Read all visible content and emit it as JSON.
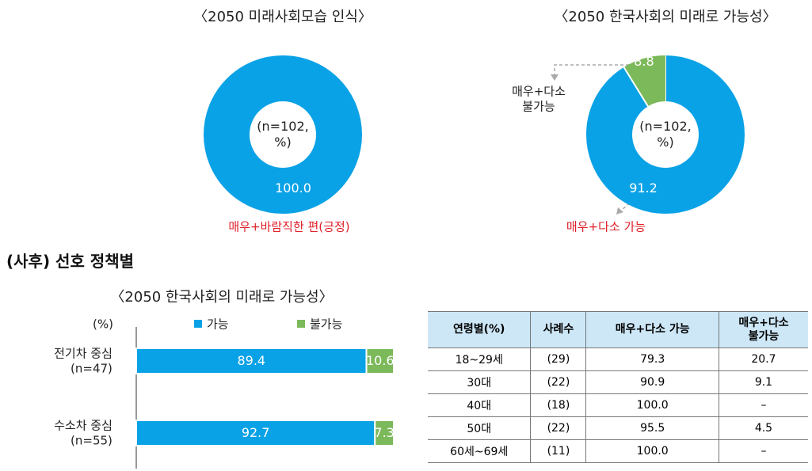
{
  "section_title": "(사후) 선호 정책별",
  "chart_data": [
    {
      "type": "donut",
      "title": "〈2050 미래사회모습 인식〉",
      "center_label": "(n=102,\n%)",
      "categories": [
        "매우+바람직한 편(긍정)"
      ],
      "values": [
        100.0
      ],
      "value_labels": [
        "100.0"
      ],
      "colors": [
        "#0aa2e6"
      ]
    },
    {
      "type": "donut",
      "title": "〈2050 한국사회의 미래로 가능성〉",
      "center_label": "(n=102,\n%)",
      "categories": [
        "매우+다소 가능",
        "매우+다소\n불가능"
      ],
      "values": [
        91.2,
        8.8
      ],
      "colors": [
        "#0aa2e6",
        "#7cb95a"
      ]
    },
    {
      "type": "bar",
      "orientation": "horizontal",
      "stacked": true,
      "title": "〈2050 한국사회의 미래로 가능성〉",
      "unit_label": "(%)",
      "categories": [
        "전기차 중심\n(n=47)",
        "수소차 중심\n(n=55)"
      ],
      "series": [
        {
          "name": "가능",
          "color": "#0aa2e6",
          "values": [
            89.4,
            92.7
          ]
        },
        {
          "name": "불가능",
          "color": "#7cb95a",
          "values": [
            10.6,
            7.3
          ]
        }
      ]
    }
  ],
  "table": {
    "header": [
      "연령별(%)",
      "사례수",
      "매우+다소 가능",
      "매우+다소\n불가능"
    ],
    "rows": [
      [
        "18~29세",
        "(29)",
        "79.3",
        "20.7"
      ],
      [
        "30대",
        "(22)",
        "90.9",
        "9.1"
      ],
      [
        "40대",
        "(18)",
        "100.0",
        "–"
      ],
      [
        "50대",
        "(22)",
        "95.5",
        "4.5"
      ],
      [
        "60세~69세",
        "(11)",
        "100.0",
        "–"
      ]
    ]
  }
}
